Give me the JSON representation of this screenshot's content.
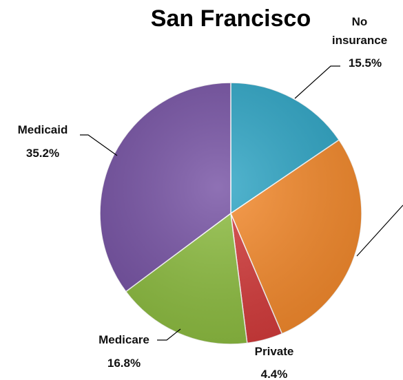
{
  "chart_data": {
    "type": "pie",
    "title": "San Francisco",
    "categories": [
      "No insurance",
      null,
      "Private",
      "Medicare",
      "Medicaid"
    ],
    "values": [
      15.5,
      28.1,
      4.4,
      16.8,
      35.2
    ],
    "value_labels": [
      "15.5%",
      null,
      "4.4%",
      "16.8%",
      "35.2%"
    ],
    "colors": [
      "#2fa6c6",
      "#f58a2c",
      "#d43b3b",
      "#8dbd40",
      "#7652a4"
    ]
  }
}
